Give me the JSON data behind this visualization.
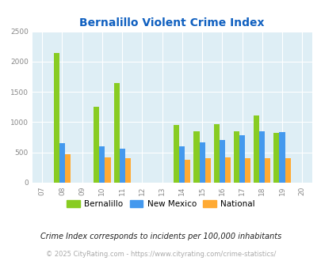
{
  "title": "Bernalillo Violent Crime Index",
  "title_color": "#1060c0",
  "plot_bg_color": "#deeef5",
  "years": [
    2008,
    2010,
    2011,
    2014,
    2015,
    2016,
    2017,
    2018,
    2019
  ],
  "bernalillo": [
    2140,
    1250,
    1640,
    960,
    850,
    970,
    850,
    1110,
    820
  ],
  "new_mexico": [
    650,
    600,
    560,
    600,
    660,
    710,
    790,
    850,
    830
  ],
  "national": [
    470,
    420,
    410,
    380,
    410,
    420,
    410,
    400,
    400
  ],
  "bernalillo_color": "#88cc22",
  "new_mexico_color": "#4499ee",
  "national_color": "#ffaa33",
  "bar_width": 0.28,
  "xlim": [
    2006.5,
    2020.5
  ],
  "ylim": [
    0,
    2500
  ],
  "yticks": [
    0,
    500,
    1000,
    1500,
    2000,
    2500
  ],
  "xticks": [
    2007,
    2008,
    2009,
    2010,
    2011,
    2012,
    2013,
    2014,
    2015,
    2016,
    2017,
    2018,
    2019,
    2020
  ],
  "xtick_labels": [
    "07",
    "08",
    "09",
    "10",
    "11",
    "12",
    "13",
    "14",
    "15",
    "16",
    "17",
    "18",
    "19",
    "20"
  ],
  "legend_labels": [
    "Bernalillo",
    "New Mexico",
    "National"
  ],
  "footnote1": "Crime Index corresponds to incidents per 100,000 inhabitants",
  "footnote2": "© 2025 CityRating.com - https://www.cityrating.com/crime-statistics/",
  "footnote1_color": "#222222",
  "footnote2_color": "#aaaaaa"
}
